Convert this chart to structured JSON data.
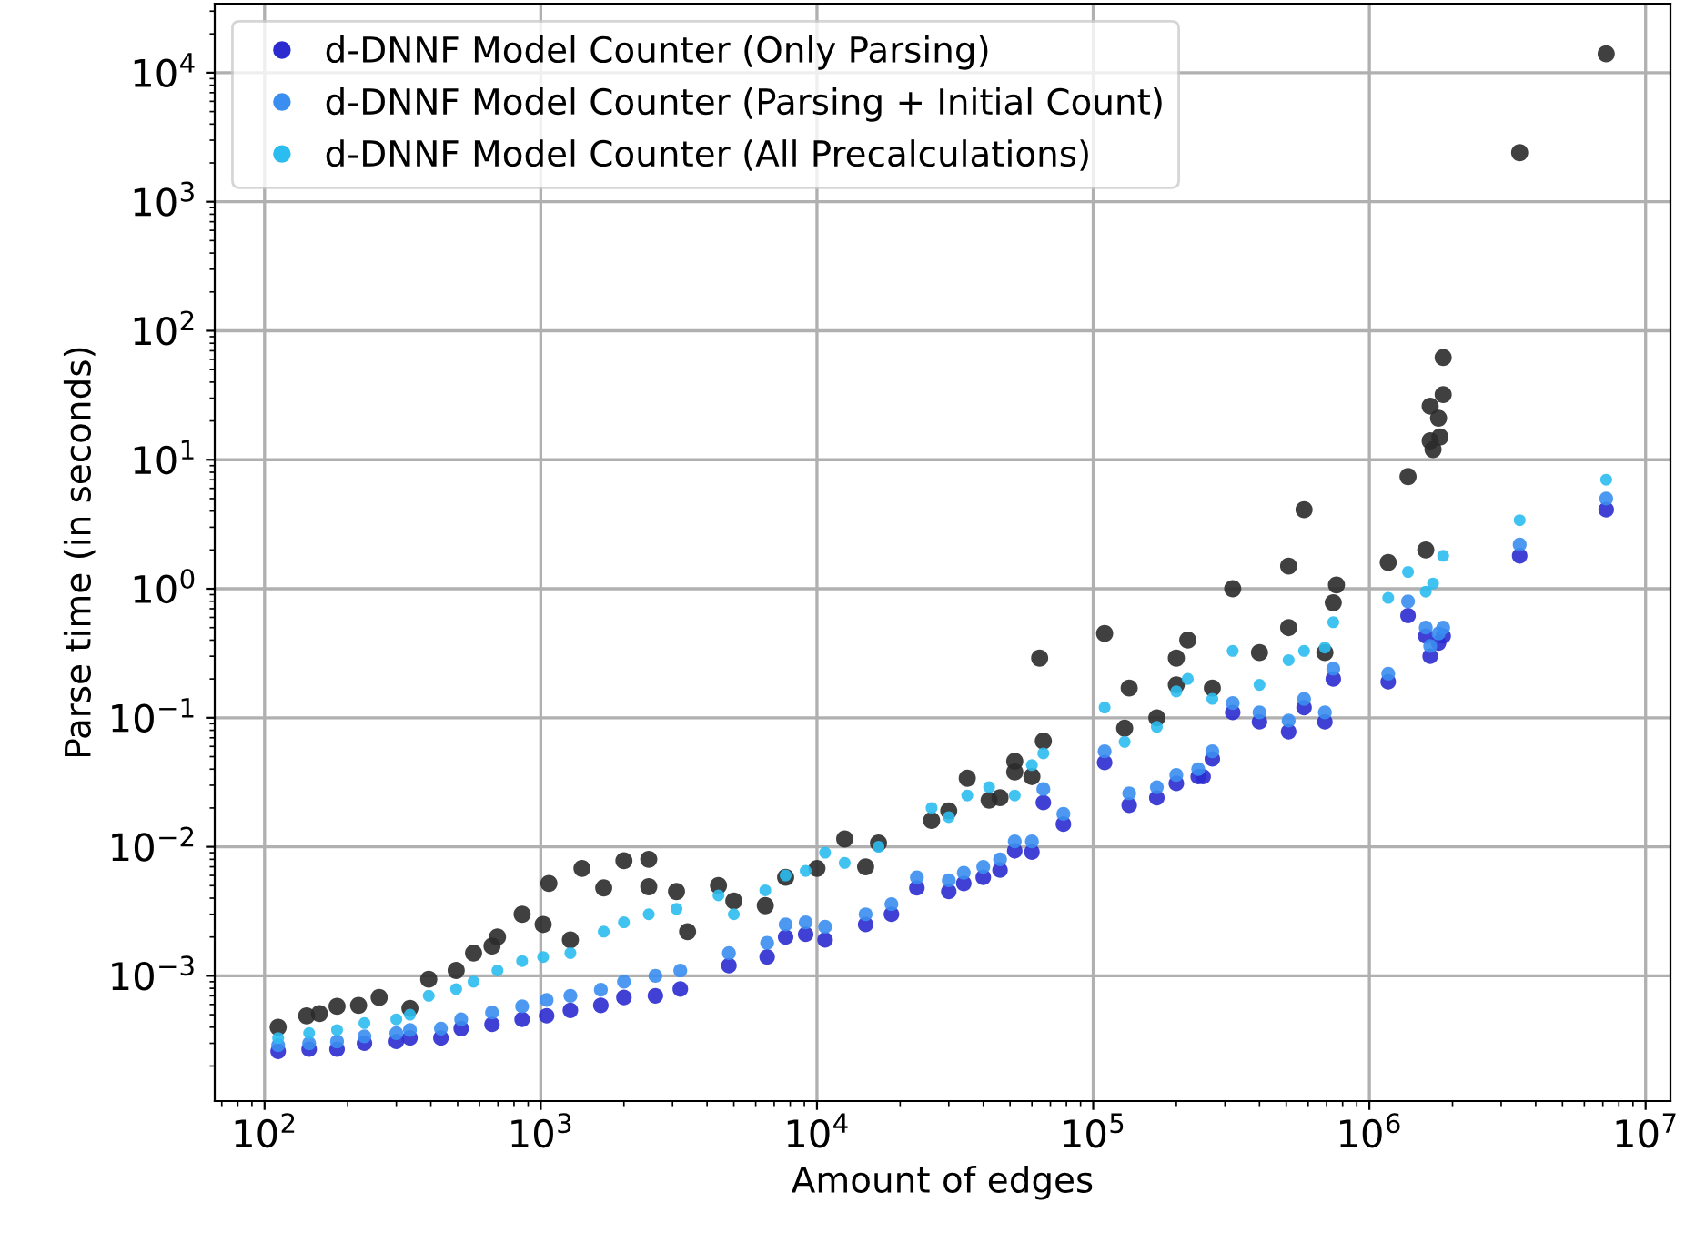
{
  "chart_data": {
    "type": "scatter",
    "xlabel": "Amount of edges",
    "ylabel": "Parse time (in seconds)",
    "log": "xy",
    "grid": true,
    "legend": "top left",
    "marker": "circle",
    "xlim": [
      66,
      12300000
    ],
    "ylim": [
      0.000107,
      34300
    ],
    "xticks": [
      {
        "value": 100,
        "label": "10$^{2}$"
      },
      {
        "value": 1000,
        "label": "10$^{3}$"
      },
      {
        "value": 10000,
        "label": "10$^{4}$"
      },
      {
        "value": 100000,
        "label": "10$^{5}$"
      },
      {
        "value": 1000000,
        "label": "10$^{6}$"
      },
      {
        "value": 10000000,
        "label": "10$^{7}$"
      }
    ],
    "yticks": [
      {
        "value": 0.001,
        "label": "10$^{−3}$"
      },
      {
        "value": 0.01,
        "label": "10$^{−2}$"
      },
      {
        "value": 0.1,
        "label": "10$^{−1}$"
      },
      {
        "value": 1,
        "label": "10$^{0}$"
      },
      {
        "value": 10,
        "label": "10$^{1}$"
      },
      {
        "value": 100,
        "label": "10$^{2}$"
      },
      {
        "value": 1000,
        "label": "10$^{3}$"
      },
      {
        "value": 10000,
        "label": "10$^{4}$"
      }
    ],
    "series": [
      {
        "color": "#2b2b2b",
        "x": [
          112,
          142,
          158,
          183,
          219,
          260,
          336,
          393,
          494,
          571,
          666,
          697,
          856,
          1020,
          1070,
          1280,
          1410,
          1690,
          2000,
          2460,
          2460,
          3100,
          3400,
          4400,
          5000,
          6500,
          7700,
          10000,
          12600,
          15000,
          16700,
          26000,
          30000,
          35000,
          42000,
          46000,
          52000,
          52000,
          60000,
          64000,
          66000,
          110000,
          130000,
          135000,
          170000,
          200000,
          200000,
          220000,
          270000,
          320000,
          400000,
          510000,
          510000,
          580000,
          690000,
          740000,
          760000,
          1170000,
          1380000,
          1600000,
          1660000,
          1700000,
          1780000,
          1800000,
          1660000,
          1850000,
          1850000,
          3500000,
          7200000
        ],
        "values": [
          0.0004,
          0.00049,
          0.00051,
          0.00058,
          0.00059,
          0.00068,
          0.00056,
          0.00094,
          0.0011,
          0.0015,
          0.0017,
          0.002,
          0.003,
          0.0025,
          0.0052,
          0.0019,
          0.0068,
          0.0048,
          0.0078,
          0.008,
          0.0049,
          0.0045,
          0.0022,
          0.005,
          0.0038,
          0.0035,
          0.0058,
          0.0068,
          0.0115,
          0.007,
          0.0107,
          0.016,
          0.019,
          0.034,
          0.023,
          0.024,
          0.046,
          0.038,
          0.035,
          0.29,
          0.066,
          0.45,
          0.083,
          0.17,
          0.1,
          0.29,
          0.18,
          0.4,
          0.17,
          1.0,
          0.32,
          0.5,
          1.5,
          4.1,
          0.32,
          0.78,
          1.07,
          1.6,
          7.4,
          2.0,
          26,
          12,
          21,
          15,
          14,
          62,
          32,
          2400,
          14000
        ]
      },
      {
        "name": "d-DNNF Model Counter (Only Parsing)",
        "color": "#2b2bd0",
        "x": [
          112,
          145,
          183,
          230,
          300,
          336,
          435,
          515,
          666,
          856,
          1050,
          1280,
          1650,
          2000,
          2600,
          3200,
          4800,
          6600,
          7700,
          9100,
          10700,
          15000,
          18600,
          23000,
          30000,
          34000,
          40000,
          46000,
          52000,
          60000,
          66000,
          78000,
          110000,
          135000,
          170000,
          200000,
          240000,
          250000,
          270000,
          320000,
          400000,
          510000,
          580000,
          690000,
          740000,
          1170000,
          1380000,
          1600000,
          1660000,
          1780000,
          1850000,
          3500000,
          7200000
        ],
        "values": [
          0.00026,
          0.00027,
          0.00027,
          0.0003,
          0.00031,
          0.00033,
          0.00033,
          0.00039,
          0.00042,
          0.00046,
          0.00049,
          0.00054,
          0.00059,
          0.00068,
          0.0007,
          0.00079,
          0.0012,
          0.0014,
          0.002,
          0.0021,
          0.0019,
          0.0025,
          0.003,
          0.0048,
          0.0045,
          0.0052,
          0.0058,
          0.0066,
          0.0093,
          0.0091,
          0.022,
          0.015,
          0.045,
          0.021,
          0.024,
          0.031,
          0.035,
          0.035,
          0.048,
          0.11,
          0.093,
          0.078,
          0.12,
          0.093,
          0.2,
          0.19,
          0.62,
          0.43,
          0.3,
          0.38,
          0.43,
          1.8,
          4.1
        ]
      },
      {
        "name": "d-DNNF Model Counter (Parsing + Initial Count)",
        "color": "#3a8ef0",
        "x": [
          112,
          145,
          183,
          230,
          300,
          336,
          435,
          515,
          666,
          856,
          1050,
          1280,
          1650,
          2000,
          2600,
          3200,
          4800,
          6600,
          7700,
          9100,
          10700,
          15000,
          18600,
          23000,
          30000,
          34000,
          40000,
          46000,
          52000,
          60000,
          66000,
          78000,
          110000,
          135000,
          170000,
          200000,
          240000,
          270000,
          320000,
          400000,
          510000,
          580000,
          690000,
          740000,
          1170000,
          1380000,
          1600000,
          1660000,
          1780000,
          1850000,
          3500000,
          7200000
        ],
        "values": [
          0.00029,
          0.0003,
          0.00031,
          0.00034,
          0.00036,
          0.00038,
          0.00039,
          0.00046,
          0.00052,
          0.00058,
          0.00065,
          0.0007,
          0.00078,
          0.0009,
          0.001,
          0.0011,
          0.0015,
          0.0018,
          0.0025,
          0.0026,
          0.0024,
          0.003,
          0.0036,
          0.0058,
          0.0055,
          0.0063,
          0.007,
          0.008,
          0.011,
          0.011,
          0.028,
          0.018,
          0.055,
          0.026,
          0.029,
          0.036,
          0.04,
          0.055,
          0.13,
          0.11,
          0.095,
          0.14,
          0.11,
          0.24,
          0.22,
          0.8,
          0.5,
          0.36,
          0.45,
          0.5,
          2.2,
          5.0
        ]
      },
      {
        "name": "d-DNNF Model Counter (All Precalculations)",
        "color": "#2cbdf0",
        "x": [
          112,
          145,
          183,
          230,
          300,
          336,
          393,
          494,
          571,
          697,
          856,
          1020,
          1280,
          1690,
          2000,
          2460,
          3100,
          4400,
          5000,
          6500,
          7700,
          9100,
          10700,
          12600,
          16700,
          26000,
          30000,
          35000,
          42000,
          52000,
          60000,
          66000,
          110000,
          130000,
          170000,
          200000,
          220000,
          270000,
          320000,
          400000,
          510000,
          580000,
          690000,
          740000,
          1170000,
          1380000,
          1600000,
          1700000,
          1850000,
          3500000,
          7200000
        ],
        "values": [
          0.00033,
          0.00036,
          0.00038,
          0.00043,
          0.00046,
          0.0005,
          0.0007,
          0.00079,
          0.0009,
          0.0011,
          0.0013,
          0.0014,
          0.0015,
          0.0022,
          0.0026,
          0.003,
          0.0033,
          0.0042,
          0.003,
          0.0046,
          0.006,
          0.0065,
          0.009,
          0.0075,
          0.01,
          0.02,
          0.017,
          0.025,
          0.029,
          0.025,
          0.043,
          0.053,
          0.12,
          0.065,
          0.085,
          0.16,
          0.2,
          0.14,
          0.33,
          0.18,
          0.28,
          0.33,
          0.35,
          0.55,
          0.85,
          1.35,
          0.95,
          1.1,
          1.8,
          3.4,
          7.0
        ]
      }
    ]
  }
}
